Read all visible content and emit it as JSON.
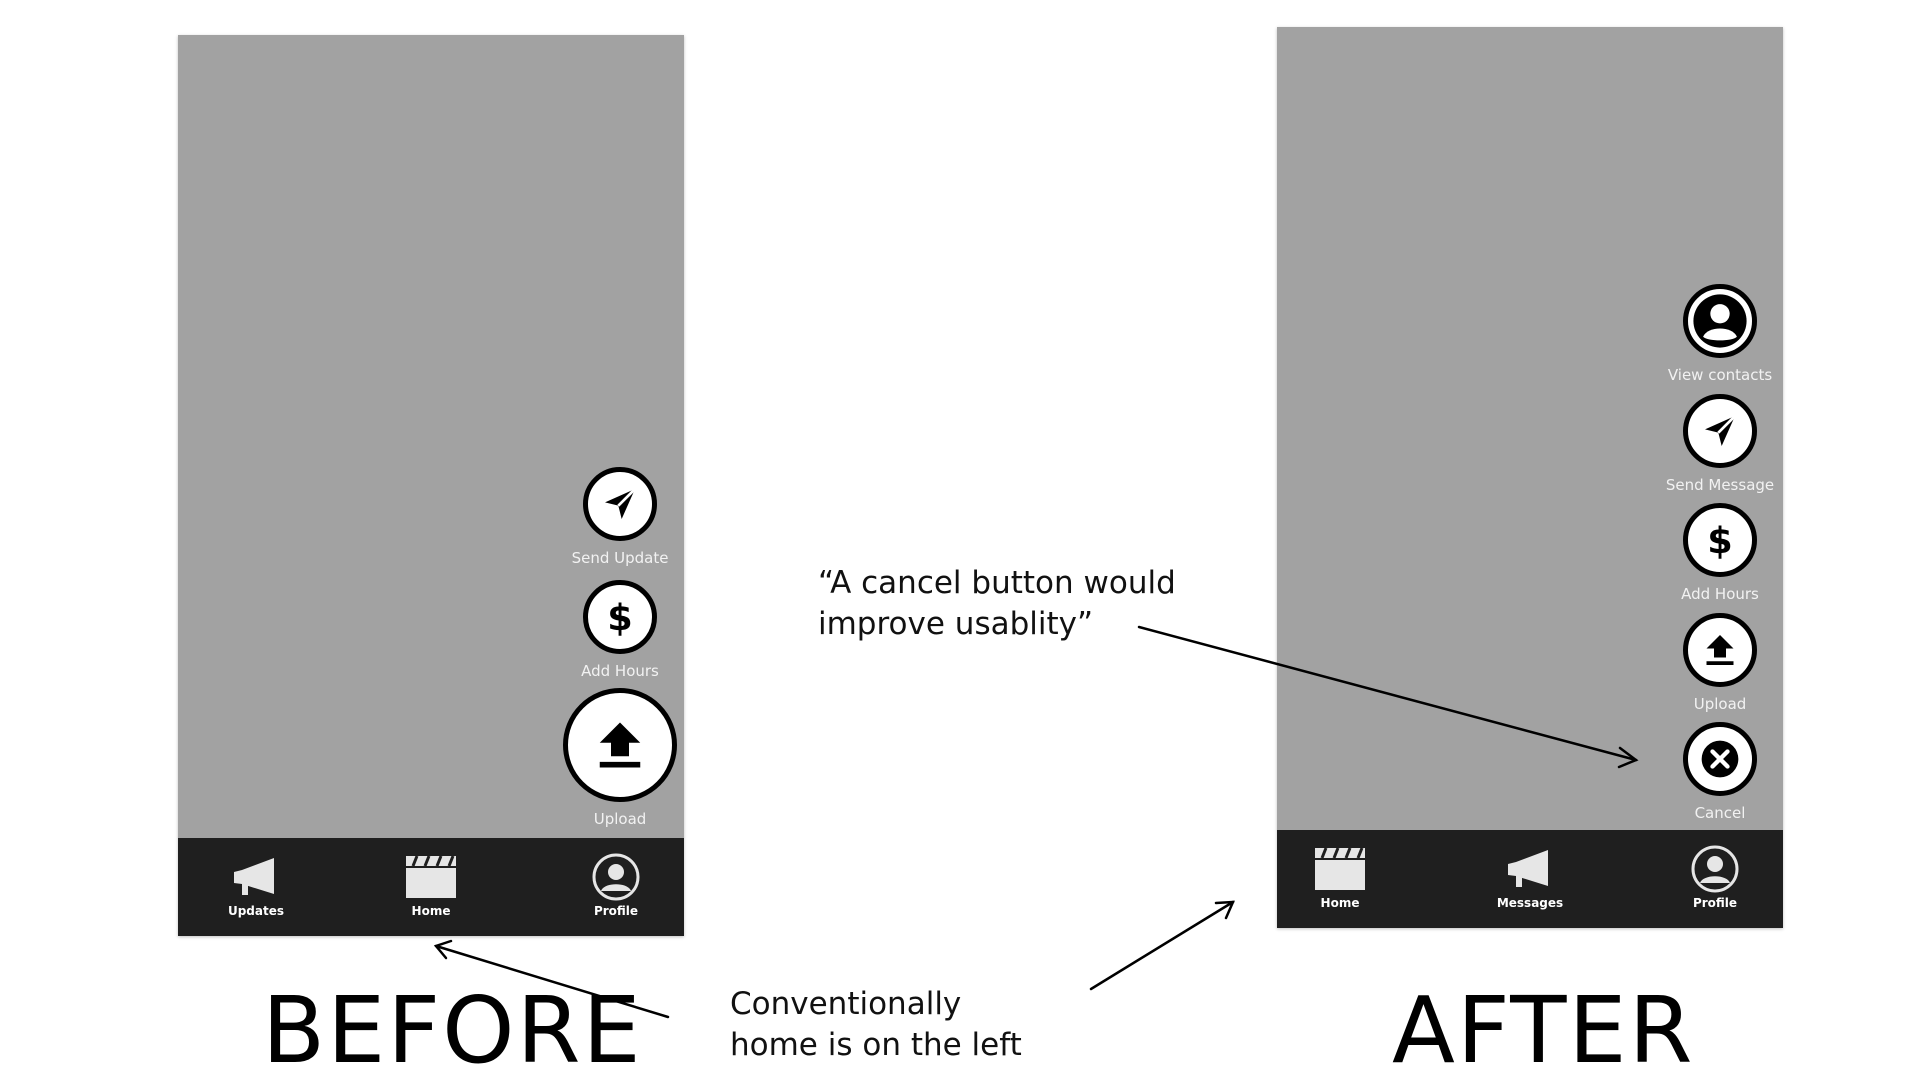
{
  "before": {
    "title": "BEFORE",
    "fabs": [
      {
        "label": "Send Update",
        "icon": "paper-plane-icon"
      },
      {
        "label": "Add Hours",
        "icon": "dollar-icon"
      },
      {
        "label": "Upload",
        "icon": "upload-icon"
      }
    ],
    "nav": [
      {
        "label": "Updates",
        "icon": "megaphone-icon"
      },
      {
        "label": "Home",
        "icon": "clapperboard-icon"
      },
      {
        "label": "Profile",
        "icon": "profile-icon"
      }
    ]
  },
  "after": {
    "title": "AFTER",
    "fabs": [
      {
        "label": "View contacts",
        "icon": "contact-icon"
      },
      {
        "label": "Send Message",
        "icon": "paper-plane-icon"
      },
      {
        "label": "Add Hours",
        "icon": "dollar-icon"
      },
      {
        "label": "Upload",
        "icon": "upload-icon"
      },
      {
        "label": "Cancel",
        "icon": "cancel-icon"
      }
    ],
    "nav": [
      {
        "label": "Home",
        "icon": "clapperboard-icon"
      },
      {
        "label": "Messages",
        "icon": "megaphone-icon"
      },
      {
        "label": "Profile",
        "icon": "profile-icon"
      }
    ]
  },
  "annotations": {
    "cancel_quote_line1": "“A cancel button would",
    "cancel_quote_line2": "improve usablity”",
    "home_note_line1": "Conventionally",
    "home_note_line2": "home is on the left"
  },
  "colors": {
    "screen": "#a2a2a2",
    "navbar": "#1f1f1f",
    "button_fill": "#ffffff",
    "button_border": "#000000"
  }
}
